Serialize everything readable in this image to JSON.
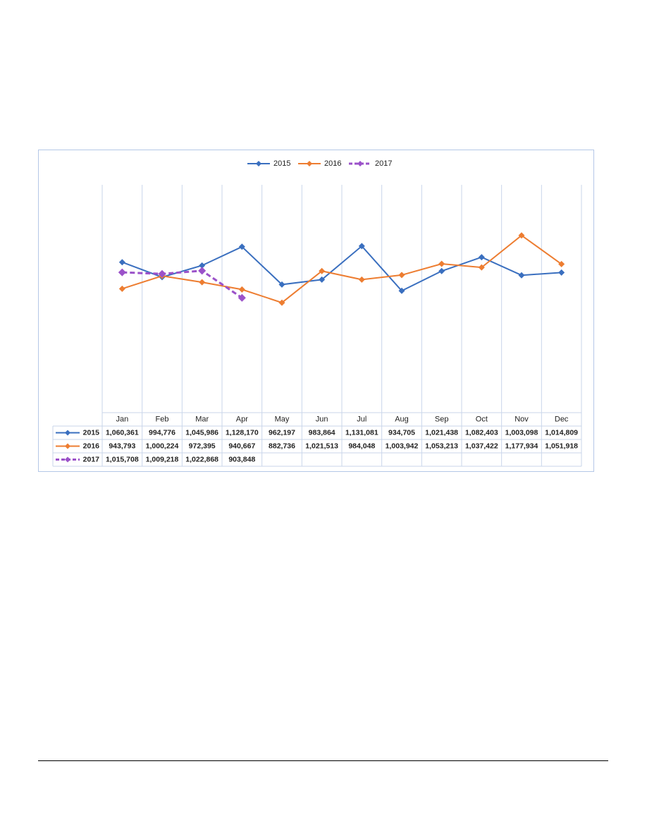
{
  "chart_data": {
    "type": "line",
    "categories": [
      "Jan",
      "Feb",
      "Mar",
      "Apr",
      "May",
      "Jun",
      "Jul",
      "Aug",
      "Sep",
      "Oct",
      "Nov",
      "Dec"
    ],
    "series": [
      {
        "name": "2015",
        "color": "#3a6fbf",
        "dashed": false,
        "values": [
          1060361,
          994776,
          1045986,
          1128170,
          962197,
          983864,
          1131081,
          934705,
          1021438,
          1082403,
          1003098,
          1014809
        ],
        "value_labels": [
          "1,060,361",
          "994,776",
          "1,045,986",
          "1,128,170",
          "962,197",
          "983,864",
          "1,131,081",
          "934,705",
          "1,021,438",
          "1,082,403",
          "1,003,098",
          "1,014,809"
        ]
      },
      {
        "name": "2016",
        "color": "#ed7d31",
        "dashed": false,
        "values": [
          943793,
          1000224,
          972395,
          940667,
          882736,
          1021513,
          984048,
          1003942,
          1053213,
          1037422,
          1177934,
          1051918
        ],
        "value_labels": [
          "943,793",
          "1,000,224",
          "972,395",
          "940,667",
          "882,736",
          "1,021,513",
          "984,048",
          "1,003,942",
          "1,053,213",
          "1,037,422",
          "1,177,934",
          "1,051,918"
        ]
      },
      {
        "name": "2017",
        "color": "#9b52c9",
        "dashed": true,
        "values": [
          1015708,
          1009218,
          1022868,
          903848,
          null,
          null,
          null,
          null,
          null,
          null,
          null,
          null
        ],
        "value_labels": [
          "1,015,708",
          "1,009,218",
          "1,022,868",
          "903,848",
          null,
          null,
          null,
          null,
          null,
          null,
          null,
          null
        ]
      }
    ],
    "ylim": [
      400000,
      1400000
    ],
    "legend": "top",
    "grid": true
  }
}
